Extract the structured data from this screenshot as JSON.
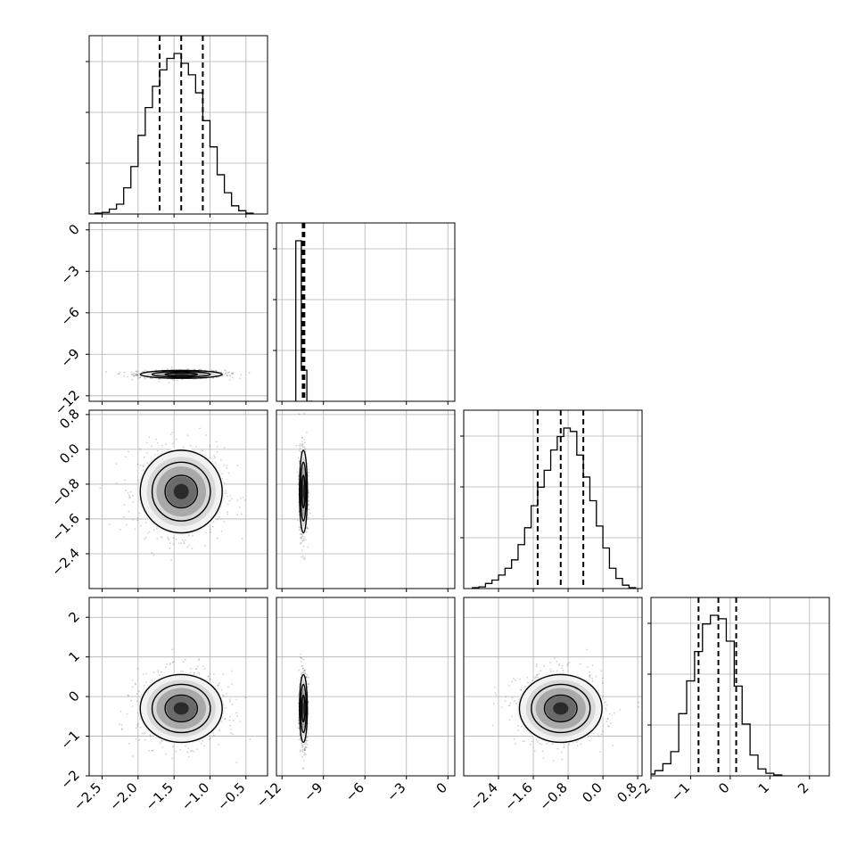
{
  "chart_data": {
    "type": "corner",
    "grid": true,
    "parameters": [
      {
        "ticks": [
          -2.5,
          -2.0,
          -1.5,
          -1.0,
          -0.5
        ],
        "tick_labels": [
          "−2.5",
          "−2.0",
          "−1.5",
          "−1.0",
          "−0.5"
        ],
        "range": [
          -2.68,
          -0.2
        ],
        "quantiles": [
          -1.7,
          -1.4,
          -1.1
        ],
        "center": -1.4,
        "sigma": 0.3
      },
      {
        "ticks": [
          -12,
          -9,
          -6,
          -3,
          0
        ],
        "tick_labels": [
          "−12",
          "−9",
          "−6",
          "−3",
          "0"
        ],
        "range": [
          -12.4,
          0.5
        ],
        "quantiles": [
          -10.5,
          -10.45,
          -10.38
        ],
        "center": -10.45,
        "sigma": 0.15
      },
      {
        "ticks": [
          -2.4,
          -1.6,
          -0.8,
          0.0,
          0.8
        ],
        "tick_labels": [
          "−2.4",
          "−1.6",
          "−0.8",
          "0.0",
          "0.8"
        ],
        "range": [
          -3.2,
          0.9
        ],
        "quantiles": [
          -1.5,
          -0.97,
          -0.45
        ],
        "center": -0.97,
        "sigma": 0.5
      },
      {
        "ticks": [
          -2,
          -1,
          0,
          1,
          2
        ],
        "tick_labels": [
          "−2",
          "−1",
          "0",
          "1",
          "2"
        ],
        "range": [
          -2.0,
          2.5
        ],
        "quantiles": [
          -0.8,
          -0.3,
          0.15
        ],
        "center": -0.3,
        "sigma": 0.45
      }
    ],
    "y_axis_labels": [
      null,
      {
        "ticks": [
          0,
          -3,
          -6,
          -9,
          -12
        ],
        "tick_labels": [
          "0",
          "−3",
          "−6",
          "−9",
          "−12"
        ]
      },
      {
        "ticks": [
          0.8,
          0.0,
          -0.8,
          -1.6,
          -2.4
        ],
        "tick_labels": [
          "0.8",
          "0.0",
          "−0.8",
          "−1.6",
          "−2.4"
        ]
      },
      {
        "ticks": [
          2,
          1,
          0,
          -1,
          -2
        ],
        "tick_labels": [
          "2",
          "1",
          "0",
          "−1",
          "−2"
        ]
      }
    ],
    "histograms": [
      {
        "param": 0,
        "edges": [
          -2.6,
          -2.5,
          -2.4,
          -2.3,
          -2.2,
          -2.1,
          -2.0,
          -1.9,
          -1.8,
          -1.7,
          -1.6,
          -1.5,
          -1.4,
          -1.3,
          -1.2,
          -1.1,
          -1.0,
          -0.9,
          -0.8,
          -0.7,
          -0.6,
          -0.5,
          -0.4
        ],
        "counts": [
          0.005,
          0.01,
          0.03,
          0.06,
          0.16,
          0.29,
          0.48,
          0.65,
          0.78,
          0.88,
          0.95,
          0.98,
          0.92,
          0.85,
          0.74,
          0.57,
          0.41,
          0.24,
          0.13,
          0.05,
          0.02,
          0.005
        ]
      },
      {
        "param": 1,
        "edges": [
          -11.0,
          -10.6,
          -10.2,
          -9.8
        ],
        "counts": [
          0.98,
          0.19,
          0.0
        ]
      },
      {
        "param": 2,
        "edges": [
          -3.0,
          -2.85,
          -2.7,
          -2.55,
          -2.4,
          -2.25,
          -2.1,
          -1.95,
          -1.8,
          -1.65,
          -1.5,
          -1.35,
          -1.2,
          -1.05,
          -0.9,
          -0.75,
          -0.6,
          -0.45,
          -0.3,
          -0.15,
          0.0,
          0.15,
          0.3,
          0.45,
          0.6,
          0.75
        ],
        "counts": [
          0.005,
          0.01,
          0.03,
          0.05,
          0.08,
          0.12,
          0.17,
          0.26,
          0.36,
          0.49,
          0.6,
          0.7,
          0.82,
          0.9,
          0.95,
          0.93,
          0.79,
          0.66,
          0.52,
          0.37,
          0.24,
          0.12,
          0.06,
          0.02,
          0.005
        ]
      },
      {
        "param": 3,
        "edges": [
          -2.1,
          -1.9,
          -1.7,
          -1.5,
          -1.3,
          -1.1,
          -0.9,
          -0.7,
          -0.5,
          -0.3,
          -0.1,
          0.1,
          0.3,
          0.5,
          0.7,
          0.9,
          1.1,
          1.3
        ],
        "counts": [
          0.01,
          0.03,
          0.07,
          0.14,
          0.36,
          0.55,
          0.72,
          0.88,
          0.93,
          0.91,
          0.78,
          0.52,
          0.3,
          0.12,
          0.04,
          0.015,
          0.005
        ]
      }
    ]
  }
}
